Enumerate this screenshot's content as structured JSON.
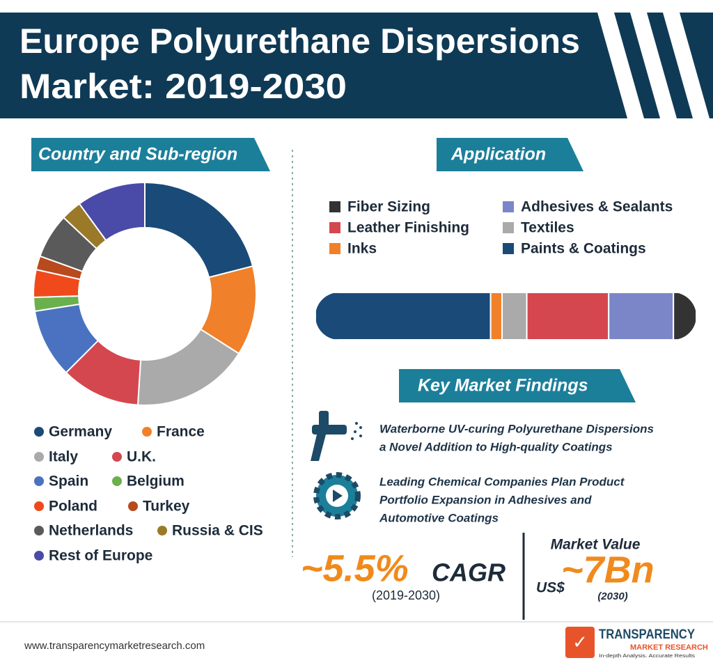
{
  "header": {
    "title_lines": [
      "Europe Polyurethane Dispersions",
      "Market: 2019-2030"
    ]
  },
  "chart_data": [
    {
      "type": "donut",
      "title": "Country and Sub-region",
      "series": [
        {
          "name": "Germany",
          "color": "#1a4a78",
          "value": 21
        },
        {
          "name": "France",
          "color": "#f0802a",
          "value": 13
        },
        {
          "name": "Italy",
          "color": "#aaaaaa",
          "value": 17
        },
        {
          "name": "U.K.",
          "color": "#d4474f",
          "value": 11.5
        },
        {
          "name": "Spain",
          "color": "#4a72c0",
          "value": 10
        },
        {
          "name": "Belgium",
          "color": "#6ab04c",
          "value": 2
        },
        {
          "name": "Poland",
          "color": "#f04a1c",
          "value": 4
        },
        {
          "name": "Turkey",
          "color": "#b84a1e",
          "value": 2
        },
        {
          "name": "Netherlands",
          "color": "#5a5a5a",
          "value": 6.5
        },
        {
          "name": "Russia & CIS",
          "color": "#9a7a28",
          "value": 3
        },
        {
          "name": "Rest of Europe",
          "color": "#4a4aa8",
          "value": 10
        }
      ]
    },
    {
      "type": "stacked-bar",
      "title": "Application",
      "series": [
        {
          "name": "Paints & Coatings",
          "color": "#1a4a78",
          "value": 46
        },
        {
          "name": "Inks",
          "color": "#f0802a",
          "value": 3
        },
        {
          "name": "Textiles",
          "color": "#aaaaaa",
          "value": 6.5
        },
        {
          "name": "Leather Finishing",
          "color": "#d4474f",
          "value": 21.5
        },
        {
          "name": "Adhesives & Sealants",
          "color": "#7b86c8",
          "value": 17
        },
        {
          "name": "Fiber Sizing",
          "color": "#333333",
          "value": 6
        }
      ]
    }
  ],
  "findings": {
    "title": "Key Market Findings",
    "items": [
      {
        "lines": [
          "Waterborne UV-curing Polyurethane Dispersions",
          "a Novel Addition to High-quality Coatings"
        ]
      },
      {
        "lines": [
          "Leading Chemical Companies Plan Product",
          "Portfolio Expansion in Adhesives and",
          "Automotive Coatings"
        ]
      }
    ]
  },
  "stats": {
    "cagr": "~5.5%",
    "cagr_label": "CAGR",
    "cagr_period": "(2019-2030)",
    "market_value_label": "Market Value",
    "currency": "US$",
    "market_value": "~7Bn",
    "market_value_year": "(2030)"
  },
  "footer": {
    "website": "www.transparencymarketresearch.com",
    "logo_line1": "TRANSPARENCY",
    "logo_line2": "MARKET RESEARCH",
    "logo_tagline": "In-depth Analysis. Accurate Results"
  }
}
